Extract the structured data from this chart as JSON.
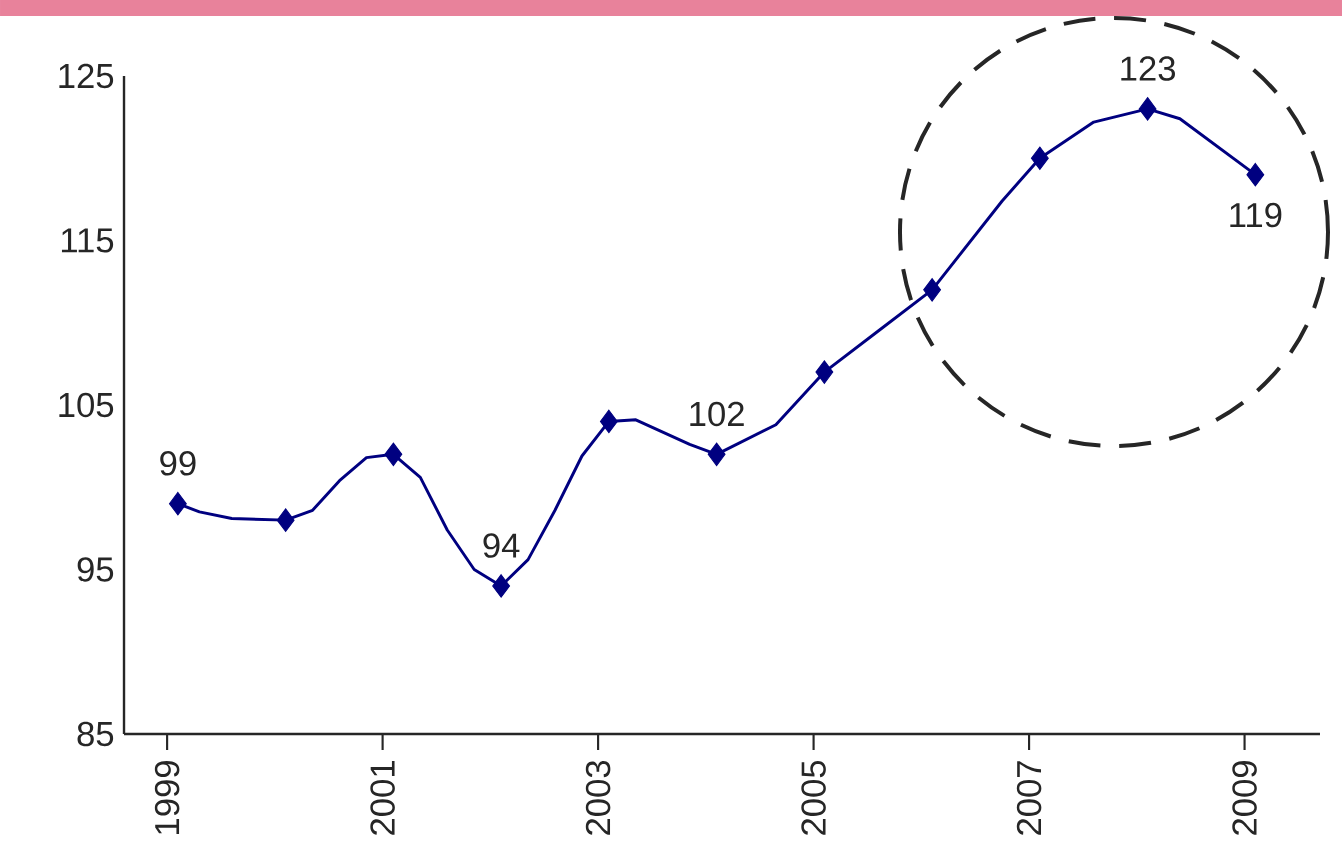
{
  "chart_data": {
    "type": "line",
    "xlim": [
      1998.6,
      2009.7
    ],
    "xticks": [
      1999,
      2001,
      2003,
      2005,
      2007,
      2009
    ],
    "ylim": [
      85,
      125
    ],
    "yticks": [
      85,
      95,
      105,
      115,
      125
    ],
    "series": [
      {
        "color": "#000080",
        "marker": "none",
        "x": [
          1999.1,
          1999.3,
          1999.6,
          2000.1,
          2000.35,
          2000.6,
          2000.85,
          2001.1,
          2001.35,
          2001.6,
          2001.85,
          2002.1,
          2002.35,
          2002.6,
          2002.85,
          2003.1,
          2003.35,
          2003.85,
          2004.1,
          2004.65,
          2005.1,
          2005.6,
          2006.1,
          2006.75,
          2007.1,
          2007.6,
          2008.1,
          2008.4,
          2009.1
        ],
        "values": [
          99,
          98.5,
          98.1,
          98,
          98.6,
          100.4,
          101.8,
          102,
          100.6,
          97.4,
          95,
          94,
          95.6,
          98.6,
          101.9,
          104,
          104.1,
          102.6,
          102,
          103.8,
          107,
          109.5,
          112,
          117.4,
          120,
          122.2,
          123,
          122.4,
          119
        ]
      },
      {
        "type": "scatter",
        "color": "#000080",
        "marker": "diamond",
        "x": [
          1999.1,
          2000.1,
          2001.1,
          2002.1,
          2003.1,
          2004.1,
          2005.1,
          2006.1,
          2007.1,
          2008.1,
          2009.1
        ],
        "values": [
          99,
          98,
          102,
          94,
          104,
          102,
          107,
          112,
          120,
          123,
          119
        ]
      }
    ],
    "annotations": [
      {
        "text": "99",
        "x": 1999.1,
        "y": 99
      },
      {
        "text": "94",
        "x": 2002.1,
        "y": 94
      },
      {
        "text": "102",
        "x": 2004.1,
        "y": 102
      },
      {
        "text": "123",
        "x": 2008.1,
        "y": 123
      },
      {
        "text": "119",
        "x": 2009.1,
        "y": 119
      }
    ]
  }
}
